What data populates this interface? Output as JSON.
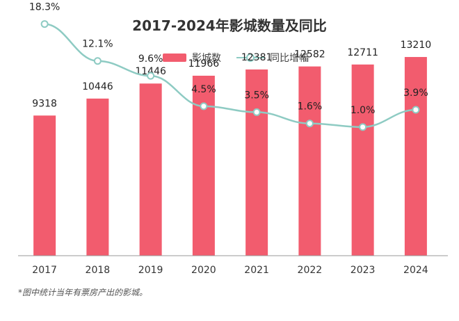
{
  "colors": {
    "bar": "#f25c6e",
    "line": "#8ecbc3",
    "axis": "#999999"
  },
  "footnote": "*图中统计当年有票房产出的影城。",
  "chart_data": {
    "type": "bar",
    "title": "2017-2024年影城数量及同比",
    "categories": [
      "2017",
      "2018",
      "2019",
      "2020",
      "2021",
      "2022",
      "2023",
      "2024"
    ],
    "series": [
      {
        "name": "影城数",
        "type": "bar",
        "values": [
          9318,
          10446,
          11446,
          11966,
          12381,
          12582,
          12711,
          13210
        ],
        "labels": [
          "9318",
          "10446",
          "11446",
          "11966",
          "12381",
          "12582",
          "12711",
          "13210"
        ]
      },
      {
        "name": "同比增幅",
        "type": "line",
        "values": [
          18.3,
          12.1,
          9.6,
          4.5,
          3.5,
          1.6,
          1.0,
          3.9
        ],
        "labels": [
          "18.3%",
          "12.1%",
          "9.6%",
          "4.5%",
          "3.5%",
          "1.6%",
          "1.0%",
          "3.9%"
        ]
      }
    ],
    "bar_axis_range": [
      0,
      17000
    ],
    "line_axis_range": [
      -1.0,
      20.0
    ],
    "legend_position": "top-center",
    "grid": false
  }
}
